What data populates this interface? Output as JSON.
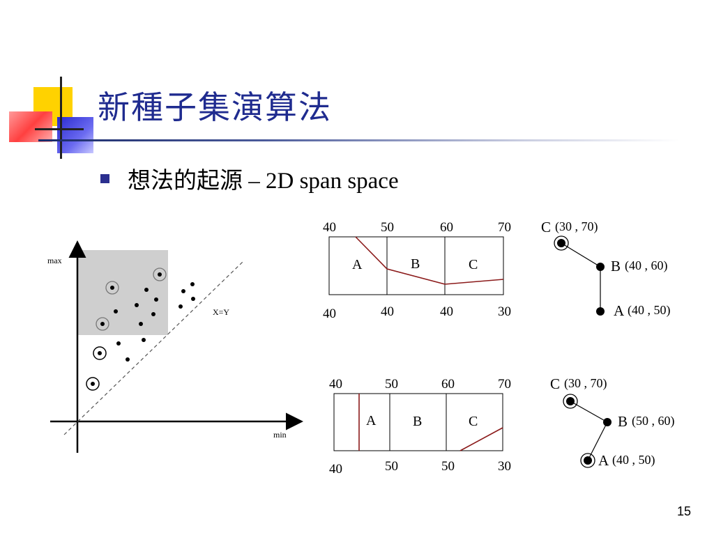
{
  "slide": {
    "title": "新種子集演算法",
    "bullet": "想法的起源 – 2D span space",
    "page_number": "15"
  },
  "span_plot": {
    "y_label": "max",
    "x_label": "min",
    "line_label": "X=Y"
  },
  "top_diagram": {
    "top_values": [
      "40",
      "50",
      "60",
      "70"
    ],
    "bottom_values": [
      "40",
      "40",
      "40",
      "30"
    ],
    "cells": [
      "A",
      "B",
      "C"
    ],
    "nodes": [
      {
        "label": "C",
        "coord": "(30 , 70)"
      },
      {
        "label": "B",
        "coord": "(40 , 60)"
      },
      {
        "label": "A",
        "coord": "(40 , 50)"
      }
    ]
  },
  "bottom_diagram": {
    "top_values": [
      "40",
      "50",
      "60",
      "70"
    ],
    "bottom_values": [
      "40",
      "50",
      "50",
      "30"
    ],
    "cells": [
      "A",
      "B",
      "C"
    ],
    "nodes": [
      {
        "label": "C",
        "coord": "(30 , 70)"
      },
      {
        "label": "B",
        "coord": "(50 , 60)"
      },
      {
        "label": "A",
        "coord": "(40 , 50)"
      }
    ]
  },
  "colors": {
    "title": "#1f2b8f",
    "curve": "#8b1a1a",
    "shade": "#cfcfcf"
  }
}
